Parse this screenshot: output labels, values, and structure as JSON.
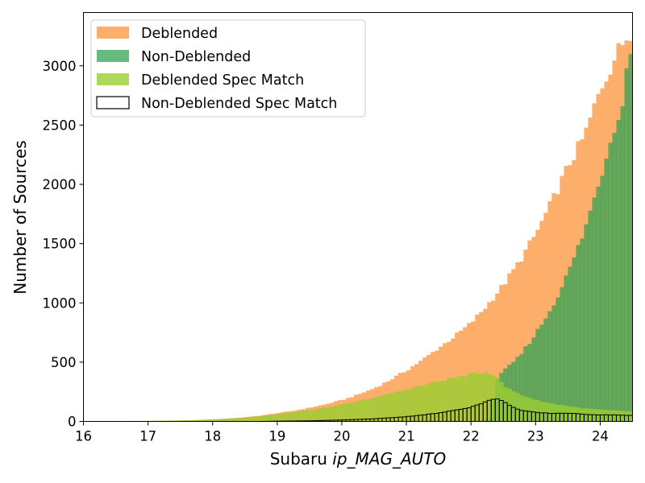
{
  "chart_data": {
    "type": "histogram",
    "xlabel_prefix": "Subaru ",
    "xlabel_italic": "ip_MAG_AUTO",
    "ylabel": "Number of Sources",
    "xlim": [
      16,
      24.5
    ],
    "ylim": [
      0,
      3450
    ],
    "xticks": [
      16,
      17,
      18,
      19,
      20,
      21,
      22,
      23,
      24
    ],
    "yticks": [
      0,
      500,
      1000,
      1500,
      2000,
      2500,
      3000
    ],
    "bin_width": 0.0625,
    "legend_position": "upper-left",
    "grid": false,
    "series": [
      {
        "name": "Deblended",
        "color": "#fdae6b",
        "style": "filled",
        "points": [
          [
            16.0,
            0
          ],
          [
            16.25,
            2
          ],
          [
            16.5,
            2
          ],
          [
            16.75,
            4
          ],
          [
            17.0,
            5
          ],
          [
            17.25,
            6
          ],
          [
            17.5,
            8
          ],
          [
            17.75,
            12
          ],
          [
            18.0,
            18
          ],
          [
            18.25,
            25
          ],
          [
            18.5,
            35
          ],
          [
            18.75,
            50
          ],
          [
            19.0,
            70
          ],
          [
            19.25,
            90
          ],
          [
            19.5,
            115
          ],
          [
            19.75,
            145
          ],
          [
            20.0,
            180
          ],
          [
            20.25,
            225
          ],
          [
            20.5,
            280
          ],
          [
            20.75,
            350
          ],
          [
            21.0,
            430
          ],
          [
            21.25,
            520
          ],
          [
            21.5,
            620
          ],
          [
            21.75,
            720
          ],
          [
            22.0,
            830
          ],
          [
            22.25,
            980
          ],
          [
            22.5,
            1150
          ],
          [
            22.75,
            1350
          ],
          [
            23.0,
            1580
          ],
          [
            23.25,
            1850
          ],
          [
            23.5,
            2150
          ],
          [
            23.75,
            2400
          ],
          [
            24.0,
            2800
          ],
          [
            24.25,
            3100
          ],
          [
            24.45,
            3290
          ]
        ]
      },
      {
        "name": "Non-Deblended",
        "color": "#31a354",
        "style": "filled",
        "points": [
          [
            16.0,
            0
          ],
          [
            21.5,
            0
          ],
          [
            22.0,
            5
          ],
          [
            22.3,
            20
          ],
          [
            22.4,
            360
          ],
          [
            22.5,
            420
          ],
          [
            22.75,
            550
          ],
          [
            23.0,
            740
          ],
          [
            23.25,
            960
          ],
          [
            23.5,
            1250
          ],
          [
            23.75,
            1600
          ],
          [
            24.0,
            2050
          ],
          [
            24.25,
            2550
          ],
          [
            24.35,
            2700
          ],
          [
            24.45,
            3150
          ]
        ]
      },
      {
        "name": "Deblended Spec Match",
        "color": "#9acd32",
        "style": "filled",
        "points": [
          [
            16.0,
            0
          ],
          [
            16.75,
            2
          ],
          [
            17.0,
            3
          ],
          [
            17.5,
            8
          ],
          [
            18.0,
            15
          ],
          [
            18.5,
            30
          ],
          [
            19.0,
            60
          ],
          [
            19.5,
            95
          ],
          [
            20.0,
            140
          ],
          [
            20.5,
            200
          ],
          [
            21.0,
            270
          ],
          [
            21.5,
            340
          ],
          [
            22.0,
            400
          ],
          [
            22.25,
            415
          ],
          [
            22.4,
            380
          ],
          [
            22.5,
            300
          ],
          [
            22.75,
            230
          ],
          [
            23.0,
            180
          ],
          [
            23.25,
            150
          ],
          [
            23.5,
            130
          ],
          [
            23.75,
            110
          ],
          [
            24.0,
            100
          ],
          [
            24.25,
            90
          ],
          [
            24.5,
            85
          ]
        ]
      },
      {
        "name": "Non-Deblended Spec Match",
        "color": "#000000",
        "style": "step",
        "points": [
          [
            16.0,
            0
          ],
          [
            18.75,
            0
          ],
          [
            19.0,
            2
          ],
          [
            19.5,
            5
          ],
          [
            20.0,
            12
          ],
          [
            20.5,
            22
          ],
          [
            21.0,
            40
          ],
          [
            21.5,
            70
          ],
          [
            22.0,
            120
          ],
          [
            22.25,
            170
          ],
          [
            22.4,
            195
          ],
          [
            22.55,
            150
          ],
          [
            22.75,
            95
          ],
          [
            23.0,
            75
          ],
          [
            23.25,
            68
          ],
          [
            23.5,
            70
          ],
          [
            23.75,
            60
          ],
          [
            24.0,
            55
          ],
          [
            24.25,
            55
          ],
          [
            24.45,
            50
          ]
        ]
      }
    ]
  }
}
